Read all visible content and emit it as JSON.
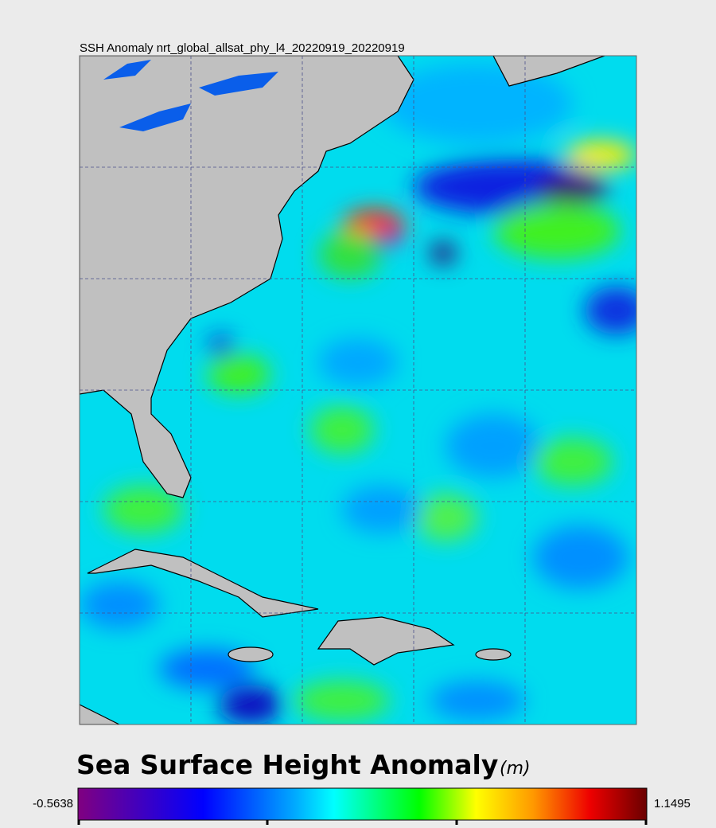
{
  "title": "SSH Anomaly nrt_global_allsat_phy_l4_20220919_20220919",
  "colorbar": {
    "title": "Sea Surface Height Anomaly",
    "unit": "(m)",
    "min": -0.5638,
    "max": 1.1495
  }
}
